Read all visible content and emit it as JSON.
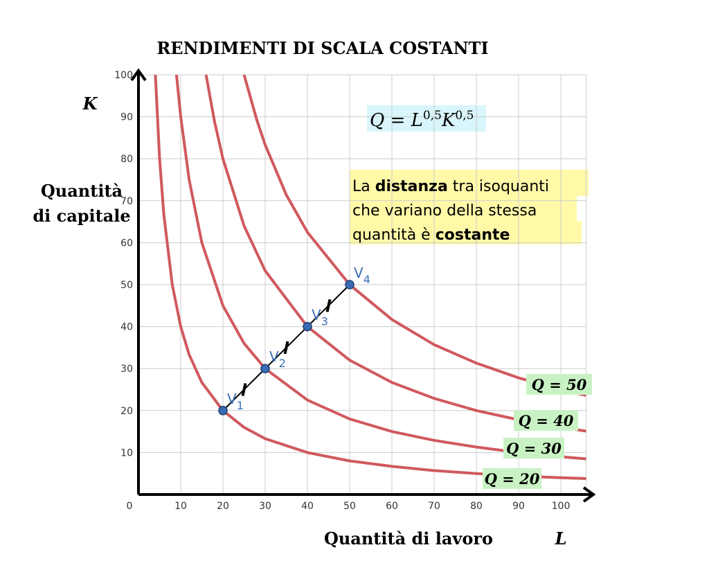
{
  "chart_data": {
    "type": "line",
    "title": "RENDIMENTI DI SCALA COSTANTI",
    "y_label_symbol": "K",
    "y_label_lines": [
      "Quantità",
      "di capitale"
    ],
    "x_label": "Quantità di lavoro",
    "x_label_symbol": "L",
    "xlim": [
      0,
      106
    ],
    "ylim": [
      0,
      100
    ],
    "xticks": [
      0,
      10,
      20,
      30,
      40,
      50,
      60,
      70,
      80,
      90,
      100
    ],
    "yticks": [
      10,
      20,
      30,
      40,
      50,
      60,
      70,
      80,
      90,
      100
    ],
    "grid": true,
    "series": [
      {
        "name": "Q = 20",
        "color": "#d0595e",
        "x": [
          4,
          5,
          6,
          8,
          10,
          12,
          15,
          20,
          25,
          30,
          40,
          50,
          60,
          70,
          80,
          90,
          100,
          106
        ],
        "values": [
          100,
          80,
          66.7,
          50,
          40,
          33.3,
          26.7,
          20,
          16,
          13.3,
          10,
          8,
          6.7,
          5.7,
          5,
          4.4,
          4,
          3.8
        ]
      },
      {
        "name": "Q = 30",
        "color": "#d0595e",
        "x": [
          9,
          10,
          12,
          15,
          20,
          25,
          30,
          40,
          50,
          60,
          70,
          80,
          90,
          100,
          106
        ],
        "values": [
          100,
          90,
          75,
          60,
          45,
          36,
          30,
          22.5,
          18,
          15,
          12.9,
          11.3,
          10,
          9,
          8.5
        ]
      },
      {
        "name": "Q = 40",
        "color": "#d0595e",
        "x": [
          16,
          18,
          20,
          25,
          30,
          40,
          50,
          60,
          70,
          80,
          90,
          100,
          106
        ],
        "values": [
          100,
          88.9,
          80,
          64,
          53.3,
          40,
          32,
          26.7,
          22.9,
          20,
          17.8,
          16,
          15.1
        ]
      },
      {
        "name": "Q = 50",
        "color": "#d0595e",
        "x": [
          25,
          28,
          30,
          35,
          40,
          50,
          60,
          70,
          80,
          90,
          100,
          106
        ],
        "values": [
          100,
          89.3,
          83.3,
          71.4,
          62.5,
          50,
          41.7,
          35.7,
          31.3,
          27.8,
          25,
          23.6
        ]
      }
    ],
    "points": {
      "color": "#3b6db5",
      "x": [
        20,
        30,
        40,
        50
      ],
      "values": [
        20,
        30,
        40,
        50
      ],
      "labels": [
        {
          "main": "V",
          "sub": "1"
        },
        {
          "main": "V",
          "sub": "2"
        },
        {
          "main": "V",
          "sub": "3"
        },
        {
          "main": "V",
          "sub": "4"
        }
      ]
    },
    "formula": [
      {
        "t": "Q = L"
      },
      {
        "t": "0,5",
        "sup": true
      },
      {
        "t": "K"
      },
      {
        "t": "0,5",
        "sup": true
      }
    ],
    "note": [
      [
        {
          "t": "La "
        },
        {
          "t": "distanza",
          "b": true
        },
        {
          "t": " tra isoquanti"
        }
      ],
      [
        {
          "t": "che variano della stessa"
        }
      ],
      [
        {
          "t": "quantità è "
        },
        {
          "t": "costante",
          "b": true
        }
      ]
    ]
  }
}
